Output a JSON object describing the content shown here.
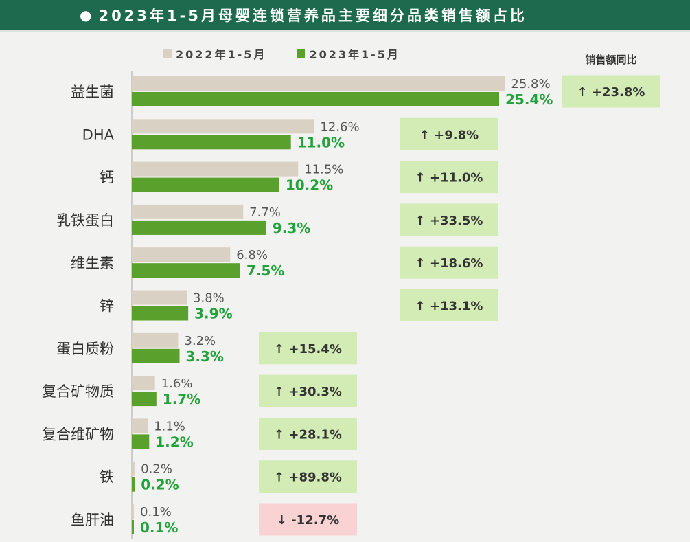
{
  "title": "● 2023年1-5月母婴连锁营养品主要细分品类销售额占比",
  "title_text": "2023年1-5月母婴连锁营养品主要细分品类销售额占比",
  "legend": {
    "label_2022": "2022年1-5月",
    "label_2023": "2023年1-5月"
  },
  "yoy_header": "销售额同比",
  "colors": {
    "bar_2022": "#d9d2c4",
    "bar_2023": "#5aa02c",
    "label_2022": "#555555",
    "label_2023": "#22a23a",
    "yoy_up_bg": "#d3ecb6",
    "yoy_down_bg": "#f9d3d3",
    "title_bg": "#1d6a4f"
  },
  "chart_data": {
    "type": "bar",
    "orientation": "horizontal",
    "categories": [
      "益生菌",
      "DHA",
      "钙",
      "乳铁蛋白",
      "维生素",
      "锌",
      "蛋白质粉",
      "复合矿物质",
      "复合维矿物",
      "铁",
      "鱼肝油"
    ],
    "series": [
      {
        "name": "2022年1-5月",
        "values": [
          25.8,
          12.6,
          11.5,
          7.7,
          6.8,
          3.8,
          3.2,
          1.6,
          1.1,
          0.2,
          0.1
        ],
        "labels": [
          "25.8%",
          "12.6%",
          "11.5%",
          "7.7%",
          "6.8%",
          "3.8%",
          "3.2%",
          "1.6%",
          "1.1%",
          "0.2%",
          "0.1%"
        ]
      },
      {
        "name": "2023年1-5月",
        "values": [
          25.4,
          11.0,
          10.2,
          9.3,
          7.5,
          3.9,
          3.3,
          1.7,
          1.2,
          0.2,
          0.1
        ],
        "labels": [
          "25.4%",
          "11.0%",
          "10.2%",
          "9.3%",
          "7.5%",
          "3.9%",
          "3.3%",
          "1.7%",
          "1.2%",
          "0.2%",
          "0.1%"
        ]
      }
    ],
    "yoy_growth": [
      23.8,
      9.8,
      11.0,
      33.5,
      18.6,
      13.1,
      15.4,
      30.3,
      28.1,
      89.8,
      -12.7
    ],
    "yoy_labels": [
      "↑ +23.8%",
      "↑ +9.8%",
      "↑ +11.0%",
      "↑ +33.5%",
      "↑ +18.6%",
      "↑ +13.1%",
      "↑ +15.4%",
      "↑ +30.3%",
      "↑ +28.1%",
      "↑ +89.8%",
      "↓ -12.7%"
    ],
    "xlim": [
      0,
      26
    ],
    "grid": false
  }
}
